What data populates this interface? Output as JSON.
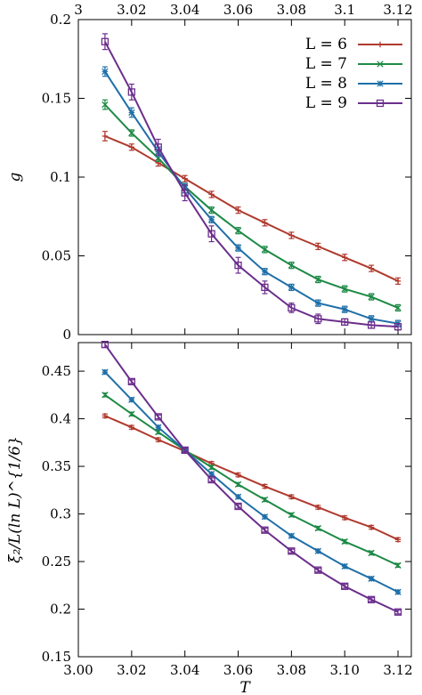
{
  "chart_data": [
    {
      "type": "line",
      "panel": "top",
      "xlabel": "",
      "ylabel": "g",
      "xlim": [
        3.0,
        3.125
      ],
      "ylim": [
        0,
        0.2
      ],
      "x_axis_position": "top",
      "xticks": [
        "3",
        "3.02",
        "3.04",
        "3.06",
        "3.08",
        "3.1",
        "3.12"
      ],
      "yticks": [
        "0",
        "0.05",
        "0.1",
        "0.15",
        "0.2"
      ],
      "legend": {
        "position": "top-right"
      },
      "x": [
        3.01,
        3.02,
        3.03,
        3.04,
        3.05,
        3.06,
        3.07,
        3.08,
        3.09,
        3.1,
        3.11,
        3.12
      ],
      "series": [
        {
          "name": "L = 6",
          "color": "#b03a2e",
          "marker": "plus",
          "values": [
            0.126,
            0.119,
            0.109,
            0.099,
            0.089,
            0.079,
            0.071,
            0.063,
            0.056,
            0.049,
            0.042,
            0.034
          ],
          "errors": [
            0.003,
            0.002,
            0.002,
            0.002,
            0.002,
            0.002,
            0.002,
            0.002,
            0.002,
            0.002,
            0.002,
            0.002
          ]
        },
        {
          "name": "L = 7",
          "color": "#1e8a46",
          "marker": "cross",
          "values": [
            0.146,
            0.128,
            0.112,
            0.094,
            0.079,
            0.066,
            0.054,
            0.044,
            0.035,
            0.029,
            0.024,
            0.017
          ],
          "errors": [
            0.003,
            0.002,
            0.002,
            0.002,
            0.002,
            0.002,
            0.002,
            0.002,
            0.002,
            0.002,
            0.002,
            0.002
          ]
        },
        {
          "name": "L = 8",
          "color": "#1f6fa8",
          "marker": "star",
          "values": [
            0.167,
            0.141,
            0.116,
            0.093,
            0.073,
            0.055,
            0.04,
            0.03,
            0.02,
            0.016,
            0.01,
            0.007
          ],
          "errors": [
            0.003,
            0.003,
            0.003,
            0.003,
            0.002,
            0.002,
            0.002,
            0.002,
            0.002,
            0.002,
            0.002,
            0.002
          ]
        },
        {
          "name": "L = 9",
          "color": "#6b2e8c",
          "marker": "square",
          "values": [
            0.186,
            0.154,
            0.119,
            0.09,
            0.064,
            0.044,
            0.03,
            0.017,
            0.01,
            0.008,
            0.006,
            0.005
          ],
          "errors": [
            0.005,
            0.005,
            0.005,
            0.005,
            0.005,
            0.005,
            0.004,
            0.003,
            0.003,
            0.002,
            0.002,
            0.002
          ]
        }
      ]
    },
    {
      "type": "line",
      "panel": "bottom",
      "xlabel": "T",
      "ylabel": "ξ₂/L(ln L)^{1/6}",
      "xlim": [
        3.0,
        3.125
      ],
      "ylim": [
        0.15,
        0.48
      ],
      "x_axis_position": "bottom",
      "xticks": [
        "3.00",
        "3.02",
        "3.04",
        "3.06",
        "3.08",
        "3.10",
        "3.12"
      ],
      "yticks": [
        "0.15",
        "0.2",
        "0.25",
        "0.3",
        "0.35",
        "0.4",
        "0.45"
      ],
      "x": [
        3.01,
        3.02,
        3.03,
        3.04,
        3.05,
        3.06,
        3.07,
        3.08,
        3.09,
        3.1,
        3.11,
        3.12
      ],
      "series": [
        {
          "name": "L = 6",
          "color": "#b03a2e",
          "marker": "plus",
          "values": [
            0.403,
            0.391,
            0.378,
            0.366,
            0.353,
            0.341,
            0.329,
            0.318,
            0.307,
            0.296,
            0.286,
            0.273
          ],
          "errors": [
            0.002,
            0.002,
            0.002,
            0.002,
            0.002,
            0.002,
            0.002,
            0.002,
            0.002,
            0.002,
            0.002,
            0.002
          ]
        },
        {
          "name": "L = 7",
          "color": "#1e8a46",
          "marker": "cross",
          "values": [
            0.425,
            0.405,
            0.386,
            0.367,
            0.349,
            0.331,
            0.315,
            0.299,
            0.285,
            0.271,
            0.259,
            0.246
          ],
          "errors": [
            0.002,
            0.002,
            0.002,
            0.002,
            0.002,
            0.002,
            0.002,
            0.002,
            0.002,
            0.002,
            0.002,
            0.002
          ]
        },
        {
          "name": "L = 8",
          "color": "#1f6fa8",
          "marker": "star",
          "values": [
            0.449,
            0.42,
            0.391,
            0.367,
            0.342,
            0.318,
            0.297,
            0.277,
            0.261,
            0.245,
            0.232,
            0.218
          ],
          "errors": [
            0.002,
            0.002,
            0.002,
            0.002,
            0.002,
            0.002,
            0.002,
            0.002,
            0.002,
            0.002,
            0.002,
            0.002
          ]
        },
        {
          "name": "L = 9",
          "color": "#6b2e8c",
          "marker": "square",
          "values": [
            0.478,
            0.439,
            0.402,
            0.367,
            0.336,
            0.308,
            0.283,
            0.261,
            0.241,
            0.224,
            0.21,
            0.197
          ],
          "errors": [
            0.003,
            0.002,
            0.002,
            0.002,
            0.002,
            0.002,
            0.002,
            0.002,
            0.002,
            0.002,
            0.002,
            0.002
          ]
        }
      ]
    }
  ]
}
